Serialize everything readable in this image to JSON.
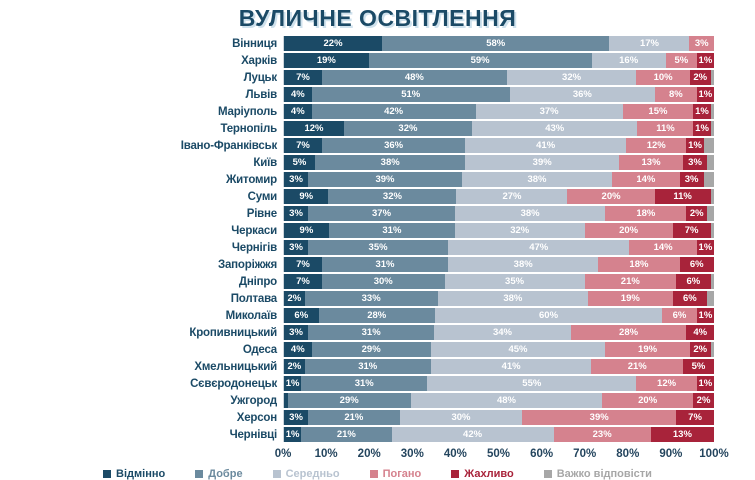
{
  "title": "ВУЛИЧНЕ ОСВІТЛЕННЯ",
  "chart_data": {
    "type": "bar",
    "variant": "horizontal-stacked-percentage",
    "title": "ВУЛИЧНЕ ОСВІТЛЕННЯ",
    "x_axis": {
      "range": [
        0,
        100
      ],
      "ticks": [
        "0%",
        "10%",
        "20%",
        "30%",
        "40%",
        "50%",
        "60%",
        "70%",
        "80%",
        "90%",
        "100%"
      ]
    },
    "legend": [
      {
        "label": "Відмінно",
        "color": "#1b4a66"
      },
      {
        "label": "Добре",
        "color": "#6b8a9e"
      },
      {
        "label": "Середньо",
        "color": "#b8c3d0"
      },
      {
        "label": "Погано",
        "color": "#d5828e"
      },
      {
        "label": "Жахливо",
        "color": "#a8233a"
      },
      {
        "label": "Важко відповісти",
        "color": "#a7a7a7"
      }
    ],
    "rows": [
      {
        "city": "Вінниця",
        "values": [
          22,
          58,
          17,
          3,
          0,
          0
        ],
        "labels": [
          "22%",
          "58%",
          "17%",
          "3%",
          "",
          ""
        ]
      },
      {
        "city": "Харків",
        "values": [
          19,
          59,
          16,
          5,
          1,
          0
        ],
        "labels": [
          "19%",
          "59%",
          "16%",
          "5%",
          "1%",
          ""
        ]
      },
      {
        "city": "Луцьк",
        "values": [
          7,
          48,
          32,
          10,
          2,
          1
        ],
        "labels": [
          "7%",
          "48%",
          "32%",
          "10%",
          "2%",
          ""
        ]
      },
      {
        "city": "Львів",
        "values": [
          4,
          51,
          36,
          8,
          1,
          0
        ],
        "labels": [
          "4%",
          "51%",
          "36%",
          "8%",
          "1%",
          ""
        ]
      },
      {
        "city": "Маріуполь",
        "values": [
          4,
          42,
          37,
          15,
          1,
          1
        ],
        "labels": [
          "4%",
          "42%",
          "37%",
          "15%",
          "1%",
          ""
        ]
      },
      {
        "city": "Тернопіль",
        "values": [
          12,
          32,
          43,
          11,
          1,
          1
        ],
        "labels": [
          "12%",
          "32%",
          "43%",
          "11%",
          "1%",
          ""
        ]
      },
      {
        "city": "Івано-Франківськ",
        "values": [
          7,
          36,
          41,
          12,
          1,
          3
        ],
        "labels": [
          "7%",
          "36%",
          "41%",
          "12%",
          "1%",
          ""
        ]
      },
      {
        "city": "Київ",
        "values": [
          5,
          38,
          39,
          13,
          3,
          2
        ],
        "labels": [
          "5%",
          "38%",
          "39%",
          "13%",
          "3%",
          ""
        ]
      },
      {
        "city": "Житомир",
        "values": [
          3,
          39,
          38,
          14,
          3,
          3
        ],
        "labels": [
          "3%",
          "39%",
          "38%",
          "14%",
          "3%",
          ""
        ]
      },
      {
        "city": "Суми",
        "values": [
          9,
          32,
          27,
          20,
          11,
          1
        ],
        "labels": [
          "9%",
          "32%",
          "27%",
          "20%",
          "11%",
          ""
        ]
      },
      {
        "city": "Рівне",
        "values": [
          3,
          37,
          38,
          18,
          2,
          2
        ],
        "labels": [
          "3%",
          "37%",
          "38%",
          "18%",
          "2%",
          ""
        ]
      },
      {
        "city": "Черкаси",
        "values": [
          9,
          31,
          32,
          20,
          7,
          1
        ],
        "labels": [
          "9%",
          "31%",
          "32%",
          "20%",
          "7%",
          ""
        ]
      },
      {
        "city": "Чернігів",
        "values": [
          3,
          35,
          47,
          14,
          1,
          0
        ],
        "labels": [
          "3%",
          "35%",
          "47%",
          "14%",
          "1%",
          ""
        ]
      },
      {
        "city": "Запоріжжя",
        "values": [
          7,
          31,
          38,
          18,
          6,
          0
        ],
        "labels": [
          "7%",
          "31%",
          "38%",
          "18%",
          "6%",
          ""
        ]
      },
      {
        "city": "Дніпро",
        "values": [
          7,
          30,
          35,
          21,
          6,
          1
        ],
        "labels": [
          "7%",
          "30%",
          "35%",
          "21%",
          "6%",
          ""
        ]
      },
      {
        "city": "Полтава",
        "values": [
          2,
          33,
          38,
          19,
          6,
          2
        ],
        "labels": [
          "2%",
          "33%",
          "38%",
          "19%",
          "6%",
          ""
        ]
      },
      {
        "city": "Миколаїв",
        "values": [
          6,
          28,
          60,
          6,
          1,
          0
        ],
        "labels": [
          "6%",
          "28%",
          "60%",
          "6%",
          "1%",
          ""
        ]
      },
      {
        "city": "Кропивницький",
        "values": [
          3,
          31,
          34,
          28,
          4,
          0
        ],
        "labels": [
          "3%",
          "31%",
          "34%",
          "28%",
          "4%",
          ""
        ]
      },
      {
        "city": "Одеса",
        "values": [
          4,
          29,
          45,
          19,
          2,
          1
        ],
        "labels": [
          "4%",
          "29%",
          "45%",
          "19%",
          "2%",
          ""
        ]
      },
      {
        "city": "Хмельницький",
        "values": [
          2,
          31,
          41,
          21,
          5,
          0
        ],
        "labels": [
          "2%",
          "31%",
          "41%",
          "21%",
          "5%",
          ""
        ]
      },
      {
        "city": "Сєвєродонецьк",
        "values": [
          1,
          31,
          55,
          12,
          1,
          0
        ],
        "labels": [
          "1%",
          "31%",
          "55%",
          "12%",
          "1%",
          ""
        ]
      },
      {
        "city": "Ужгород",
        "values": [
          1,
          29,
          48,
          20,
          2,
          0
        ],
        "labels": [
          "",
          "29%",
          "48%",
          "20%",
          "2%",
          ""
        ]
      },
      {
        "city": "Херсон",
        "values": [
          3,
          21,
          30,
          39,
          7,
          0
        ],
        "labels": [
          "3%",
          "21%",
          "30%",
          "39%",
          "7%",
          ""
        ]
      },
      {
        "city": "Чернівці",
        "values": [
          1,
          21,
          42,
          23,
          13,
          0
        ],
        "labels": [
          "1%",
          "21%",
          "42%",
          "23%",
          "13%",
          ""
        ]
      }
    ]
  }
}
